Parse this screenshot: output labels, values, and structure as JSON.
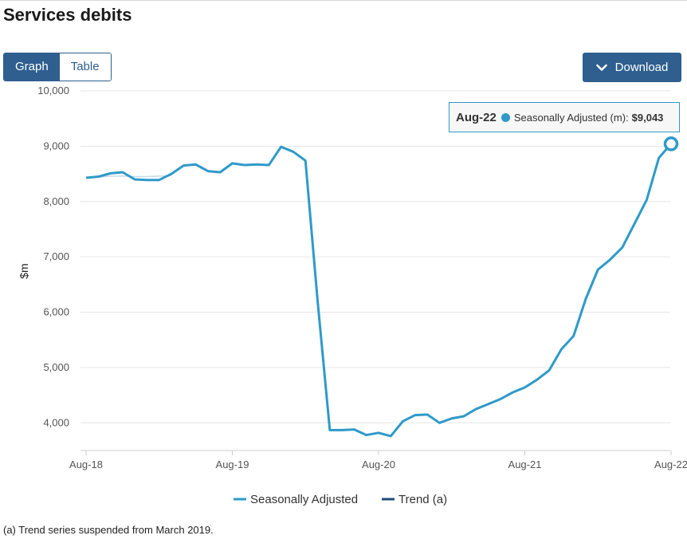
{
  "page": {
    "title": "Services debits"
  },
  "toolbar": {
    "views": [
      {
        "label": "Graph",
        "active": true
      },
      {
        "label": "Table",
        "active": false
      }
    ],
    "download_label": "Download",
    "download_icon": "chevron-down-icon"
  },
  "tooltip": {
    "date": "Aug-22",
    "series": "Seasonally Adjusted (m):",
    "value": "$9,043"
  },
  "footnote": "(a) Trend series suspended from March 2019.",
  "colors": {
    "seasonally_adjusted": "#2e9ac9",
    "trend": "#1f4e79",
    "button": "#2e5f8f",
    "trend_faint": "#c7d9e4"
  },
  "chart_data": {
    "type": "line",
    "ylabel": "$m",
    "ylim": [
      3500,
      10000
    ],
    "yticks": [
      4000,
      5000,
      6000,
      7000,
      8000,
      9000,
      10000
    ],
    "ytick_labels": [
      "4,000",
      "5,000",
      "6,000",
      "7,000",
      "8,000",
      "9,000",
      "10,000"
    ],
    "xticks": [
      "Aug-18",
      "Aug-19",
      "Aug-20",
      "Aug-21",
      "Aug-22"
    ],
    "grid": true,
    "legend": "bottom",
    "x": [
      "Aug-18",
      "Sep-18",
      "Oct-18",
      "Nov-18",
      "Dec-18",
      "Jan-19",
      "Feb-19",
      "Mar-19",
      "Apr-19",
      "May-19",
      "Jun-19",
      "Jul-19",
      "Aug-19",
      "Sep-19",
      "Oct-19",
      "Nov-19",
      "Dec-19",
      "Jan-20",
      "Feb-20",
      "Mar-20",
      "Apr-20",
      "May-20",
      "Jun-20",
      "Jul-20",
      "Aug-20",
      "Sep-20",
      "Oct-20",
      "Nov-20",
      "Dec-20",
      "Jan-21",
      "Feb-21",
      "Mar-21",
      "Apr-21",
      "May-21",
      "Jun-21",
      "Jul-21",
      "Aug-21",
      "Sep-21",
      "Oct-21",
      "Nov-21",
      "Dec-21",
      "Jan-22",
      "Feb-22",
      "Mar-22",
      "Apr-22",
      "May-22",
      "Jun-22",
      "Jul-22",
      "Aug-22"
    ],
    "series": [
      {
        "name": "Seasonally Adjusted",
        "values": [
          8430,
          8450,
          8510,
          8530,
          8400,
          8390,
          8390,
          8500,
          8650,
          8670,
          8550,
          8530,
          8690,
          8660,
          8670,
          8660,
          8990,
          8900,
          8740,
          6200,
          3870,
          3870,
          3880,
          3780,
          3820,
          3760,
          4030,
          4140,
          4150,
          4000,
          4080,
          4120,
          4250,
          4340,
          4430,
          4550,
          4640,
          4780,
          4950,
          5330,
          5570,
          6240,
          6770,
          6950,
          7170,
          7600,
          8030,
          8790,
          9043
        ]
      },
      {
        "name": "Trend (a)",
        "values": [
          8420,
          8440,
          8460,
          8460,
          8450,
          8450,
          8460,
          8470,
          null,
          null,
          null,
          null,
          null,
          null,
          null,
          null,
          null,
          null,
          null,
          null,
          null,
          null,
          null,
          null,
          null,
          null,
          null,
          null,
          null,
          null,
          null,
          null,
          null,
          null,
          null,
          null,
          null,
          null,
          null,
          null,
          null,
          null,
          null,
          null,
          null,
          null,
          null,
          null,
          null
        ]
      }
    ],
    "highlight": {
      "x": "Aug-22",
      "value": 9043
    }
  }
}
